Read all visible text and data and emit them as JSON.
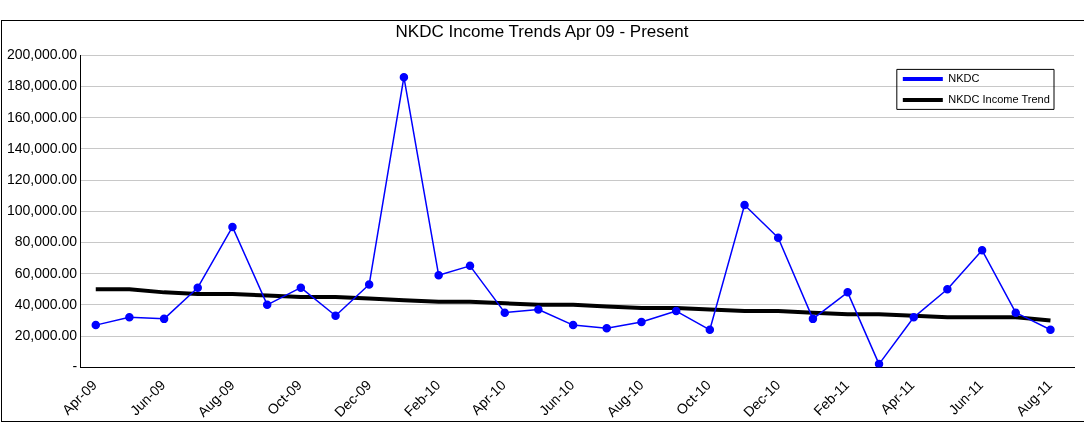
{
  "chart_data": {
    "type": "line",
    "title": "NKDC Income Trends Apr 09 - Present",
    "x": [
      "2009-04-15",
      "2009-05-15",
      "2009-06-15",
      "2009-07-15",
      "2009-08-15",
      "2009-09-15",
      "2009-10-15",
      "2009-11-15",
      "2009-12-15",
      "2010-01-15",
      "2010-02-15",
      "2010-03-15",
      "2010-04-15",
      "2010-05-15",
      "2010-06-15",
      "2010-07-15",
      "2010-08-15",
      "2010-09-15",
      "2010-10-15",
      "2010-11-15",
      "2010-12-15",
      "2011-01-15",
      "2011-02-15",
      "2011-03-15",
      "2011-04-15",
      "2011-05-15",
      "2011-06-15",
      "2011-07-15",
      "2011-08-15"
    ],
    "series": [
      {
        "name": "NKDC",
        "color": "#0000ff",
        "marker": "circle",
        "values": [
          27000,
          32000,
          31000,
          51000,
          90000,
          40000,
          51000,
          33000,
          53000,
          186000,
          59000,
          65000,
          35000,
          37000,
          27000,
          25000,
          29000,
          36000,
          24000,
          104000,
          83000,
          31000,
          48000,
          2000,
          32000,
          50000,
          75000,
          35000,
          24000
        ]
      },
      {
        "name": "NKDC Income Trend",
        "color": "#000000",
        "marker": "none",
        "values": [
          50000,
          50000,
          48000,
          47000,
          47000,
          46000,
          45000,
          45000,
          44000,
          43000,
          42000,
          42000,
          41000,
          40000,
          40000,
          39000,
          38000,
          38000,
          37000,
          36000,
          36000,
          35000,
          34000,
          34000,
          33000,
          32000,
          32000,
          32000,
          30000
        ]
      }
    ],
    "xlim": [
      "2009-04-01",
      "2011-09-05"
    ],
    "xticks": [
      {
        "value": "2009-04-01",
        "label": "Apr-09"
      },
      {
        "value": "2009-06-01",
        "label": "Jun-09"
      },
      {
        "value": "2009-08-01",
        "label": "Aug-09"
      },
      {
        "value": "2009-10-01",
        "label": "Oct-09"
      },
      {
        "value": "2009-12-01",
        "label": "Dec-09"
      },
      {
        "value": "2010-02-01",
        "label": "Feb-10"
      },
      {
        "value": "2010-04-01",
        "label": "Apr-10"
      },
      {
        "value": "2010-06-01",
        "label": "Jun-10"
      },
      {
        "value": "2010-08-01",
        "label": "Aug-10"
      },
      {
        "value": "2010-10-01",
        "label": "Oct-10"
      },
      {
        "value": "2010-12-01",
        "label": "Dec-10"
      },
      {
        "value": "2011-02-01",
        "label": "Feb-11"
      },
      {
        "value": "2011-04-01",
        "label": "Apr-11"
      },
      {
        "value": "2011-06-01",
        "label": "Jun-11"
      },
      {
        "value": "2011-08-01",
        "label": "Aug-11"
      }
    ],
    "ylim": [
      0,
      200000
    ],
    "yticks": [
      {
        "value": 0,
        "label": "-"
      },
      {
        "value": 20000,
        "label": "20,000.00"
      },
      {
        "value": 40000,
        "label": "40,000.00"
      },
      {
        "value": 60000,
        "label": "60,000.00"
      },
      {
        "value": 80000,
        "label": "80,000.00"
      },
      {
        "value": 100000,
        "label": "100,000.00"
      },
      {
        "value": 120000,
        "label": "120,000.00"
      },
      {
        "value": 140000,
        "label": "140,000.00"
      },
      {
        "value": 160000,
        "label": "160,000.00"
      },
      {
        "value": 180000,
        "label": "180,000.00"
      },
      {
        "value": 200000,
        "label": "200,000.00"
      }
    ],
    "grid": "y",
    "legend": "top right",
    "line_style": "solid"
  }
}
